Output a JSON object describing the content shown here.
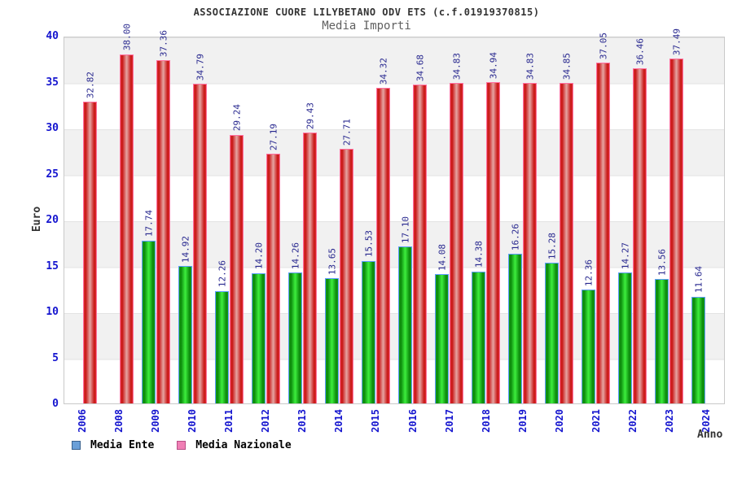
{
  "header": {
    "title": "ASSOCIAZIONE CUORE LILYBETANO ODV ETS (c.f.01919370815)",
    "subtitle": "Media Importi"
  },
  "axes": {
    "y_label": "Euro",
    "x_label": "Anno",
    "y_ticks": [
      0,
      5,
      10,
      15,
      20,
      25,
      30,
      35,
      40
    ]
  },
  "legend": {
    "items": [
      {
        "label": "Media Ente",
        "swatch_color": "#6a9fd8",
        "swatch_border": "#39618e"
      },
      {
        "label": "Media Nazionale",
        "swatch_color": "#f07fb5",
        "swatch_border": "#b84f86"
      }
    ]
  },
  "colors": {
    "bar_ente_fill": "#1eb41e",
    "bar_ente_border": "#5e9cff",
    "bar_nazionale_fill": "#d42020",
    "bar_nazionale_border": "#ff6e9e",
    "value_label": "#28288f",
    "axis_text": "#1515cf",
    "band_gray": "#f1f1f1"
  },
  "chart_data": {
    "type": "bar",
    "title": "ASSOCIAZIONE CUORE LILYBETANO ODV ETS (c.f.01919370815)",
    "subtitle": "Media Importi",
    "xlabel": "Anno",
    "ylabel": "Euro",
    "ylim": [
      0,
      40
    ],
    "grid": "horizontal-bands",
    "legend_position": "bottom-left",
    "categories": [
      "2006",
      "2008",
      "2009",
      "2010",
      "2011",
      "2012",
      "2013",
      "2014",
      "2015",
      "2016",
      "2017",
      "2018",
      "2019",
      "2020",
      "2021",
      "2022",
      "2023",
      "2024"
    ],
    "series": [
      {
        "name": "Media Ente",
        "values": [
          null,
          null,
          17.74,
          14.92,
          12.26,
          14.2,
          14.26,
          13.65,
          15.53,
          17.1,
          14.08,
          14.38,
          16.26,
          15.28,
          12.36,
          14.27,
          13.56,
          11.64
        ]
      },
      {
        "name": "Media Nazionale",
        "values": [
          32.82,
          38.0,
          37.36,
          34.79,
          29.24,
          27.19,
          29.43,
          27.71,
          34.32,
          34.68,
          34.83,
          34.94,
          34.83,
          34.85,
          37.05,
          36.46,
          37.49,
          null
        ]
      }
    ]
  }
}
